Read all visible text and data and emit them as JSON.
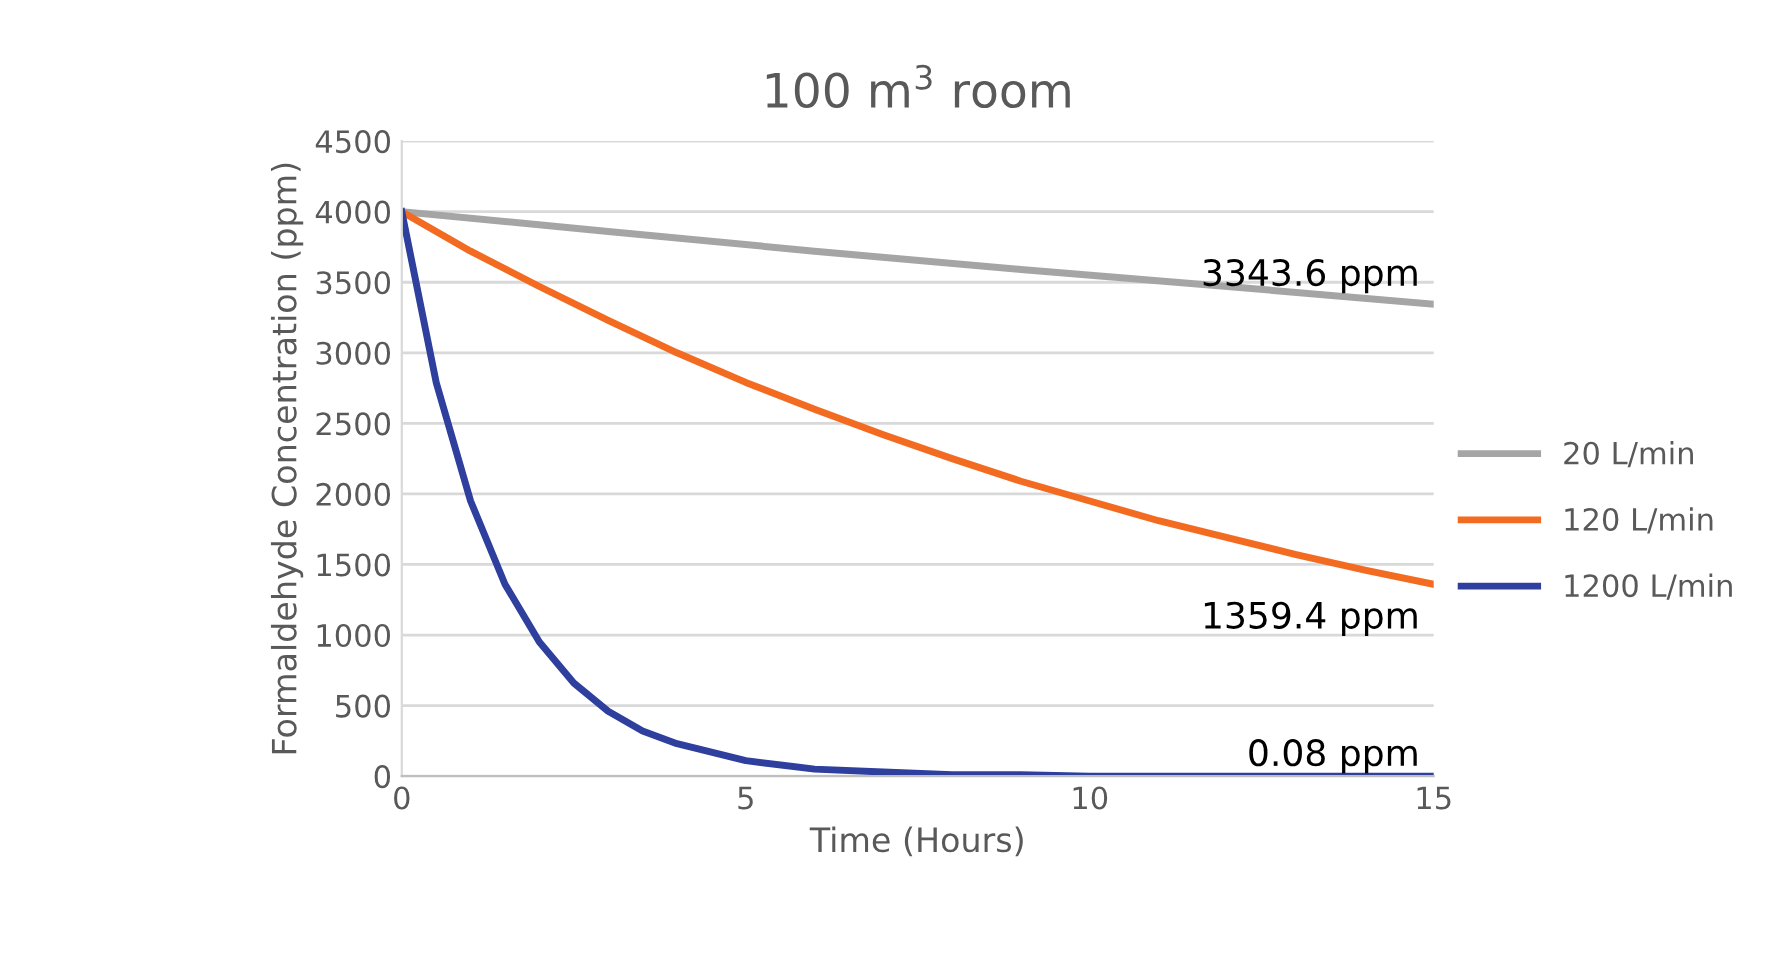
{
  "chart_data": {
    "type": "line",
    "title": "100 m$^{3}$ room",
    "xlabel": "Time (Hours)",
    "ylabel": "Formaldehyde Concentration (ppm)",
    "xlim": [
      0,
      15
    ],
    "xticks": [
      0,
      5,
      10,
      15
    ],
    "ylim": [
      0,
      4500
    ],
    "yticks": [
      0,
      500,
      1000,
      1500,
      2000,
      2500,
      3000,
      3500,
      4000,
      4500
    ],
    "grid": "y",
    "legend": "right",
    "line_style": "solid",
    "marker": "none",
    "series": [
      {
        "name": "20 L/min",
        "color": "#a5a5a5",
        "x": [
          0,
          3,
          6,
          9,
          12,
          15
        ],
        "values": [
          4000,
          3860,
          3720,
          3590,
          3470,
          3343.6
        ]
      },
      {
        "name": "120 L/min",
        "color": "#f26b21",
        "x": [
          0,
          1,
          2,
          3,
          4,
          5,
          6,
          7,
          8,
          9,
          10,
          11,
          12,
          13,
          14,
          15
        ],
        "values": [
          4000,
          3720,
          3470,
          3230,
          3000,
          2790,
          2600,
          2420,
          2250,
          2090,
          1950,
          1810,
          1690,
          1570,
          1460,
          1359.4
        ]
      },
      {
        "name": "1200 L/min",
        "color": "#2e3f9e",
        "x": [
          0,
          0.5,
          1,
          1.5,
          2,
          2.5,
          3,
          3.5,
          4,
          5,
          6,
          7,
          8,
          9,
          10,
          12,
          15
        ],
        "values": [
          4000,
          2790,
          1950,
          1360,
          950,
          660,
          460,
          320,
          230,
          110,
          50,
          30,
          10,
          10,
          0,
          0,
          0.08
        ]
      }
    ],
    "annotations": [
      "3343.6 ppm",
      "1359.4 ppm",
      "0.08 ppm"
    ]
  }
}
